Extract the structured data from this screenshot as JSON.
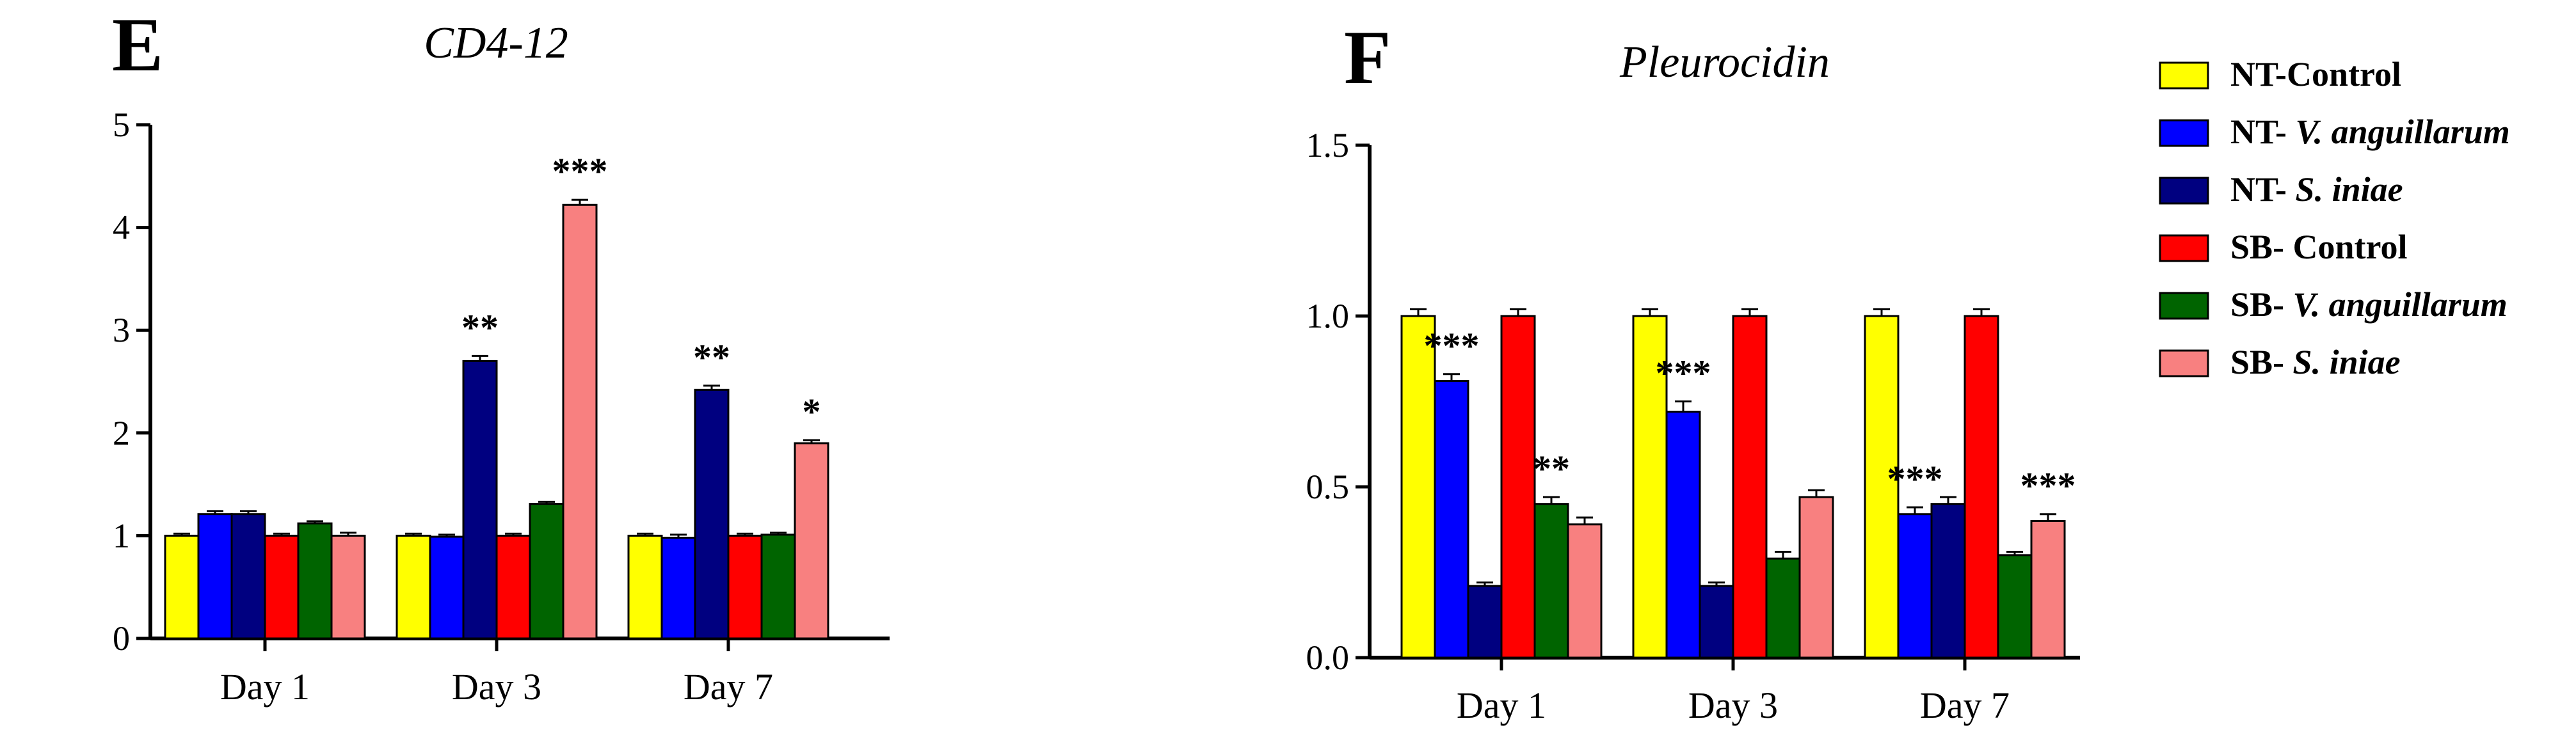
{
  "legend": [
    {
      "key": "nt_control",
      "prefix": "NT-Control",
      "italic": "",
      "color": "#ffff00"
    },
    {
      "key": "nt_va",
      "prefix": "NT- ",
      "italic": "V. anguillarum",
      "color": "#0000ff"
    },
    {
      "key": "nt_si",
      "prefix": "NT- ",
      "italic": "S. iniae",
      "color": "#000080"
    },
    {
      "key": "sb_control",
      "prefix": "SB- Control",
      "italic": "",
      "color": "#ff0000"
    },
    {
      "key": "sb_va",
      "prefix": "SB- ",
      "italic": "V. anguillarum",
      "color": "#006400"
    },
    {
      "key": "sb_si",
      "prefix": "SB- ",
      "italic": "S. iniae",
      "color": "#f88080"
    }
  ],
  "chart_data": [
    {
      "type": "bar",
      "panel": "E",
      "title": "CD4-12",
      "categories": [
        "Day 1",
        "Day 3",
        "Day 7"
      ],
      "ylim": [
        0,
        5
      ],
      "yticks": [
        "0",
        "1",
        "2",
        "3",
        "4",
        "5"
      ],
      "series": [
        {
          "name": "NT-Control",
          "values": [
            1.0,
            1.0,
            1.0
          ],
          "errors": [
            0.02,
            0.02,
            0.02
          ]
        },
        {
          "name": "NT- V. anguillarum",
          "values": [
            1.21,
            0.99,
            0.98
          ],
          "errors": [
            0.03,
            0.02,
            0.03
          ]
        },
        {
          "name": "NT- S. iniae",
          "values": [
            1.21,
            2.7,
            2.42
          ],
          "errors": [
            0.03,
            0.05,
            0.04
          ]
        },
        {
          "name": "SB- Control",
          "values": [
            1.0,
            1.0,
            1.0
          ],
          "errors": [
            0.02,
            0.02,
            0.02
          ]
        },
        {
          "name": "SB- V. anguillarum",
          "values": [
            1.12,
            1.31,
            1.01
          ],
          "errors": [
            0.02,
            0.02,
            0.02
          ]
        },
        {
          "name": "SB- S. iniae",
          "values": [
            1.0,
            4.22,
            1.9
          ],
          "errors": [
            0.03,
            0.05,
            0.03
          ]
        }
      ],
      "annotations": [
        {
          "category": 1,
          "series": 2,
          "text": "**"
        },
        {
          "category": 1,
          "series": 5,
          "text": "***"
        },
        {
          "category": 2,
          "series": 2,
          "text": "**"
        },
        {
          "category": 2,
          "series": 5,
          "text": "*"
        }
      ]
    },
    {
      "type": "bar",
      "panel": "F",
      "title": "Pleurocidin",
      "categories": [
        "Day 1",
        "Day 3",
        "Day 7"
      ],
      "ylim": [
        0,
        1.5
      ],
      "yticks": [
        "0.0",
        "0.5",
        "1.0",
        "1.5"
      ],
      "series": [
        {
          "name": "NT-Control",
          "values": [
            1.0,
            1.0,
            1.0
          ],
          "errors": [
            0.02,
            0.02,
            0.02
          ]
        },
        {
          "name": "NT- V. anguillarum",
          "values": [
            0.81,
            0.72,
            0.42
          ],
          "errors": [
            0.02,
            0.03,
            0.02
          ]
        },
        {
          "name": "NT- S. iniae",
          "values": [
            0.21,
            0.21,
            0.45
          ],
          "errors": [
            0.01,
            0.01,
            0.02
          ]
        },
        {
          "name": "SB- Control",
          "values": [
            1.0,
            1.0,
            1.0
          ],
          "errors": [
            0.02,
            0.02,
            0.02
          ]
        },
        {
          "name": "SB- V. anguillarum",
          "values": [
            0.45,
            0.29,
            0.3
          ],
          "errors": [
            0.02,
            0.02,
            0.01
          ]
        },
        {
          "name": "SB- S. iniae",
          "values": [
            0.39,
            0.47,
            0.4
          ],
          "errors": [
            0.02,
            0.02,
            0.02
          ]
        }
      ],
      "annotations": [
        {
          "category": 0,
          "series": 1,
          "text": "***"
        },
        {
          "category": 0,
          "series": 4,
          "text": "**"
        },
        {
          "category": 1,
          "series": 1,
          "text": "***"
        },
        {
          "category": 2,
          "series": 1,
          "text": "***"
        },
        {
          "category": 2,
          "series": 5,
          "text": "***"
        }
      ]
    }
  ]
}
